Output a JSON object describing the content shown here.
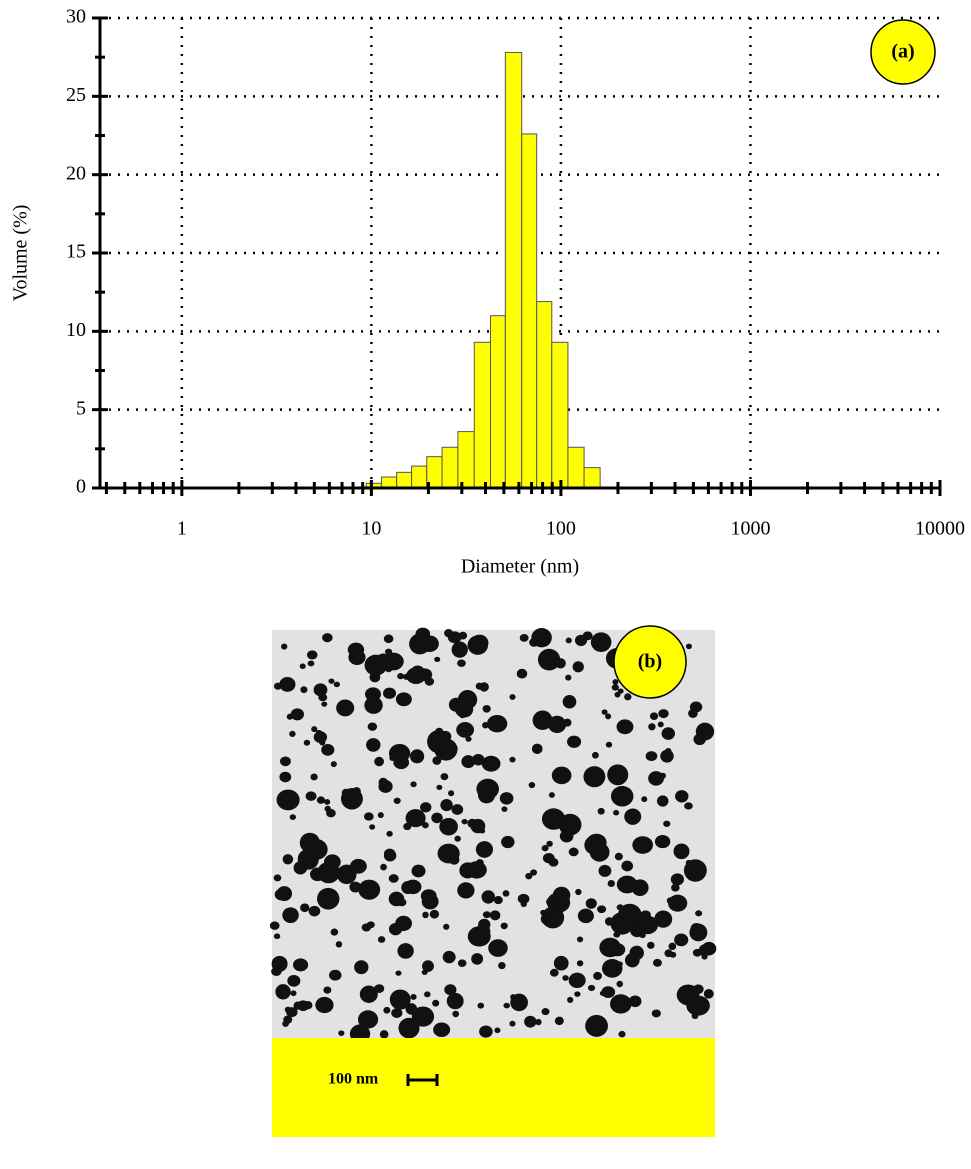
{
  "chart_data": {
    "type": "histogram",
    "x_label": "Diameter (nm)",
    "y_label": "Volume (%)",
    "annotation": "(a)",
    "xscale": "log",
    "grid": true,
    "color": "#ffff00",
    "bins": [
      9.4,
      11.3,
      13.6,
      16.3,
      19.6,
      23.6,
      28.6,
      34.9,
      42.5,
      50.9,
      62.1,
      74.5,
      89.5,
      108.9,
      132.5,
      161
    ],
    "values": [
      0.3,
      0.7,
      1.0,
      1.4,
      2.0,
      2.6,
      3.6,
      9.3,
      11.0,
      27.8,
      22.6,
      11.9,
      9.3,
      2.6,
      1.3
    ],
    "xlim": [
      0.37,
      10000
    ],
    "ylim": [
      0,
      30
    ],
    "xticks": [
      1,
      10,
      100,
      1000,
      10000
    ],
    "yticks": [
      0,
      5,
      10,
      15,
      20,
      25,
      30
    ],
    "xminorticks": [
      0.4,
      0.5,
      0.6,
      0.7,
      0.8,
      0.9,
      2,
      3,
      4,
      5,
      6,
      7,
      8,
      9,
      20,
      30,
      40,
      50,
      60,
      70,
      80,
      90,
      200,
      300,
      400,
      500,
      600,
      700,
      800,
      900,
      2000,
      3000,
      4000,
      5000,
      6000,
      7000,
      8000,
      9000
    ],
    "yminorticks": [
      2.5,
      7.5,
      12.5,
      17.5,
      22.5,
      27.5
    ]
  },
  "image": {
    "label": "(b)",
    "scale_bar": "100 nm"
  }
}
